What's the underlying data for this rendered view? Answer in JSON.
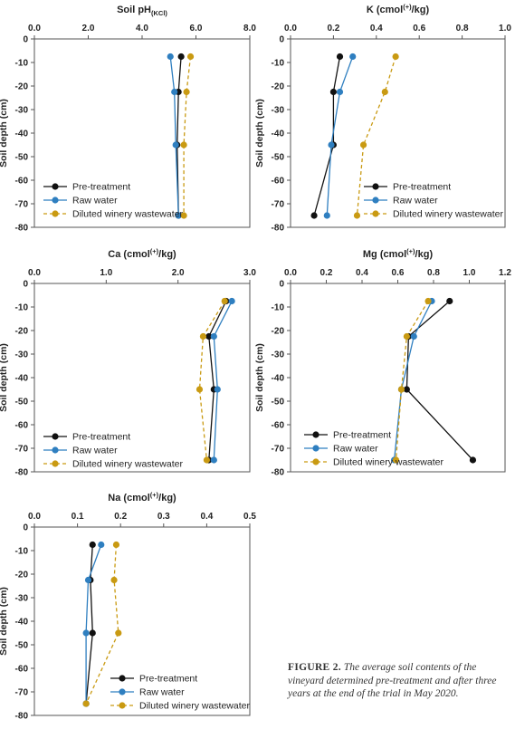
{
  "series_defs": [
    {
      "name": "Pre-treatment",
      "color": "#111111",
      "dash": false
    },
    {
      "name": "Raw water",
      "color": "#2f7fc0",
      "dash": false
    },
    {
      "name": "Diluted winery wastewater",
      "color": "#c99a12",
      "dash": true
    }
  ],
  "depth_label": "Soil depth (cm)",
  "y_ticks": [
    "0",
    "-10",
    "-20",
    "-30",
    "-40",
    "-50",
    "-60",
    "-70",
    "-80"
  ],
  "caption": {
    "lead": "FIGURE 2.",
    "body": "The average soil contents of the vineyard determined pre-treatment and after three years at the end of the trial in May 2020."
  },
  "chart_data": [
    {
      "type": "line",
      "title": "Soil pH",
      "title_sub": "(KCl)",
      "title_tail": "",
      "x_ticks": [
        "0.0",
        "2.0",
        "4.0",
        "6.0",
        "8.0"
      ],
      "xlim": [
        0,
        8
      ],
      "ylim": [
        -80,
        0
      ],
      "depths": [
        -7.5,
        -22.5,
        -45,
        -75
      ],
      "series": [
        {
          "name": "Pre-treatment",
          "values": [
            5.45,
            5.35,
            5.3,
            5.35
          ]
        },
        {
          "name": "Raw water",
          "values": [
            5.05,
            5.2,
            5.25,
            5.35
          ]
        },
        {
          "name": "Diluted winery wastewater",
          "values": [
            5.8,
            5.65,
            5.55,
            5.55
          ]
        }
      ]
    },
    {
      "type": "line",
      "title": "K (cmol",
      "title_sup": "(+)",
      "title_tail": "/kg)",
      "x_ticks": [
        "0.0",
        "0.2",
        "0.4",
        "0.6",
        "0.8",
        "1.0"
      ],
      "xlim": [
        0,
        1
      ],
      "ylim": [
        -80,
        0
      ],
      "depths": [
        -7.5,
        -22.5,
        -45,
        -75
      ],
      "series": [
        {
          "name": "Pre-treatment",
          "values": [
            0.23,
            0.2,
            0.2,
            0.11
          ]
        },
        {
          "name": "Raw water",
          "values": [
            0.29,
            0.23,
            0.19,
            0.17
          ]
        },
        {
          "name": "Diluted winery wastewater",
          "values": [
            0.49,
            0.44,
            0.34,
            0.31
          ]
        }
      ]
    },
    {
      "type": "line",
      "title": "Ca (cmol",
      "title_sup": "(+)",
      "title_tail": "/kg)",
      "x_ticks": [
        "0.0",
        "1.0",
        "2.0",
        "3.0"
      ],
      "xlim": [
        0,
        3
      ],
      "ylim": [
        -80,
        0
      ],
      "depths": [
        -7.5,
        -22.5,
        -45,
        -75
      ],
      "series": [
        {
          "name": "Pre-treatment",
          "values": [
            2.67,
            2.43,
            2.5,
            2.43
          ]
        },
        {
          "name": "Raw water",
          "values": [
            2.75,
            2.5,
            2.55,
            2.5
          ]
        },
        {
          "name": "Diluted winery wastewater",
          "values": [
            2.65,
            2.35,
            2.3,
            2.4
          ]
        }
      ]
    },
    {
      "type": "line",
      "title": "Mg (cmol",
      "title_sup": "(+)",
      "title_tail": "/kg)",
      "x_ticks": [
        "0.0",
        "0.2",
        "0.4",
        "0.6",
        "0.8",
        "1.0",
        "1.2"
      ],
      "xlim": [
        0,
        1.2
      ],
      "ylim": [
        -80,
        0
      ],
      "depths": [
        -7.5,
        -22.5,
        -45,
        -75
      ],
      "series": [
        {
          "name": "Pre-treatment",
          "values": [
            0.89,
            0.66,
            0.65,
            1.02
          ]
        },
        {
          "name": "Raw water",
          "values": [
            0.79,
            0.69,
            0.62,
            0.58
          ]
        },
        {
          "name": "Diluted winery wastewater",
          "values": [
            0.77,
            0.65,
            0.62,
            0.59
          ]
        }
      ]
    },
    {
      "type": "line",
      "title": "Na (cmol",
      "title_sup": "(+)",
      "title_tail": "/kg)",
      "x_ticks": [
        "0.0",
        "0.1",
        "0.2",
        "0.3",
        "0.4",
        "0.5"
      ],
      "xlim": [
        0,
        0.5
      ],
      "ylim": [
        -80,
        0
      ],
      "depths": [
        -7.5,
        -22.5,
        -45,
        -75
      ],
      "series": [
        {
          "name": "Pre-treatment",
          "values": [
            0.135,
            0.13,
            0.135,
            0.12
          ]
        },
        {
          "name": "Raw water",
          "values": [
            0.155,
            0.125,
            0.12,
            0.12
          ]
        },
        {
          "name": "Diluted winery wastewater",
          "values": [
            0.19,
            0.185,
            0.195,
            0.12
          ]
        }
      ]
    }
  ]
}
